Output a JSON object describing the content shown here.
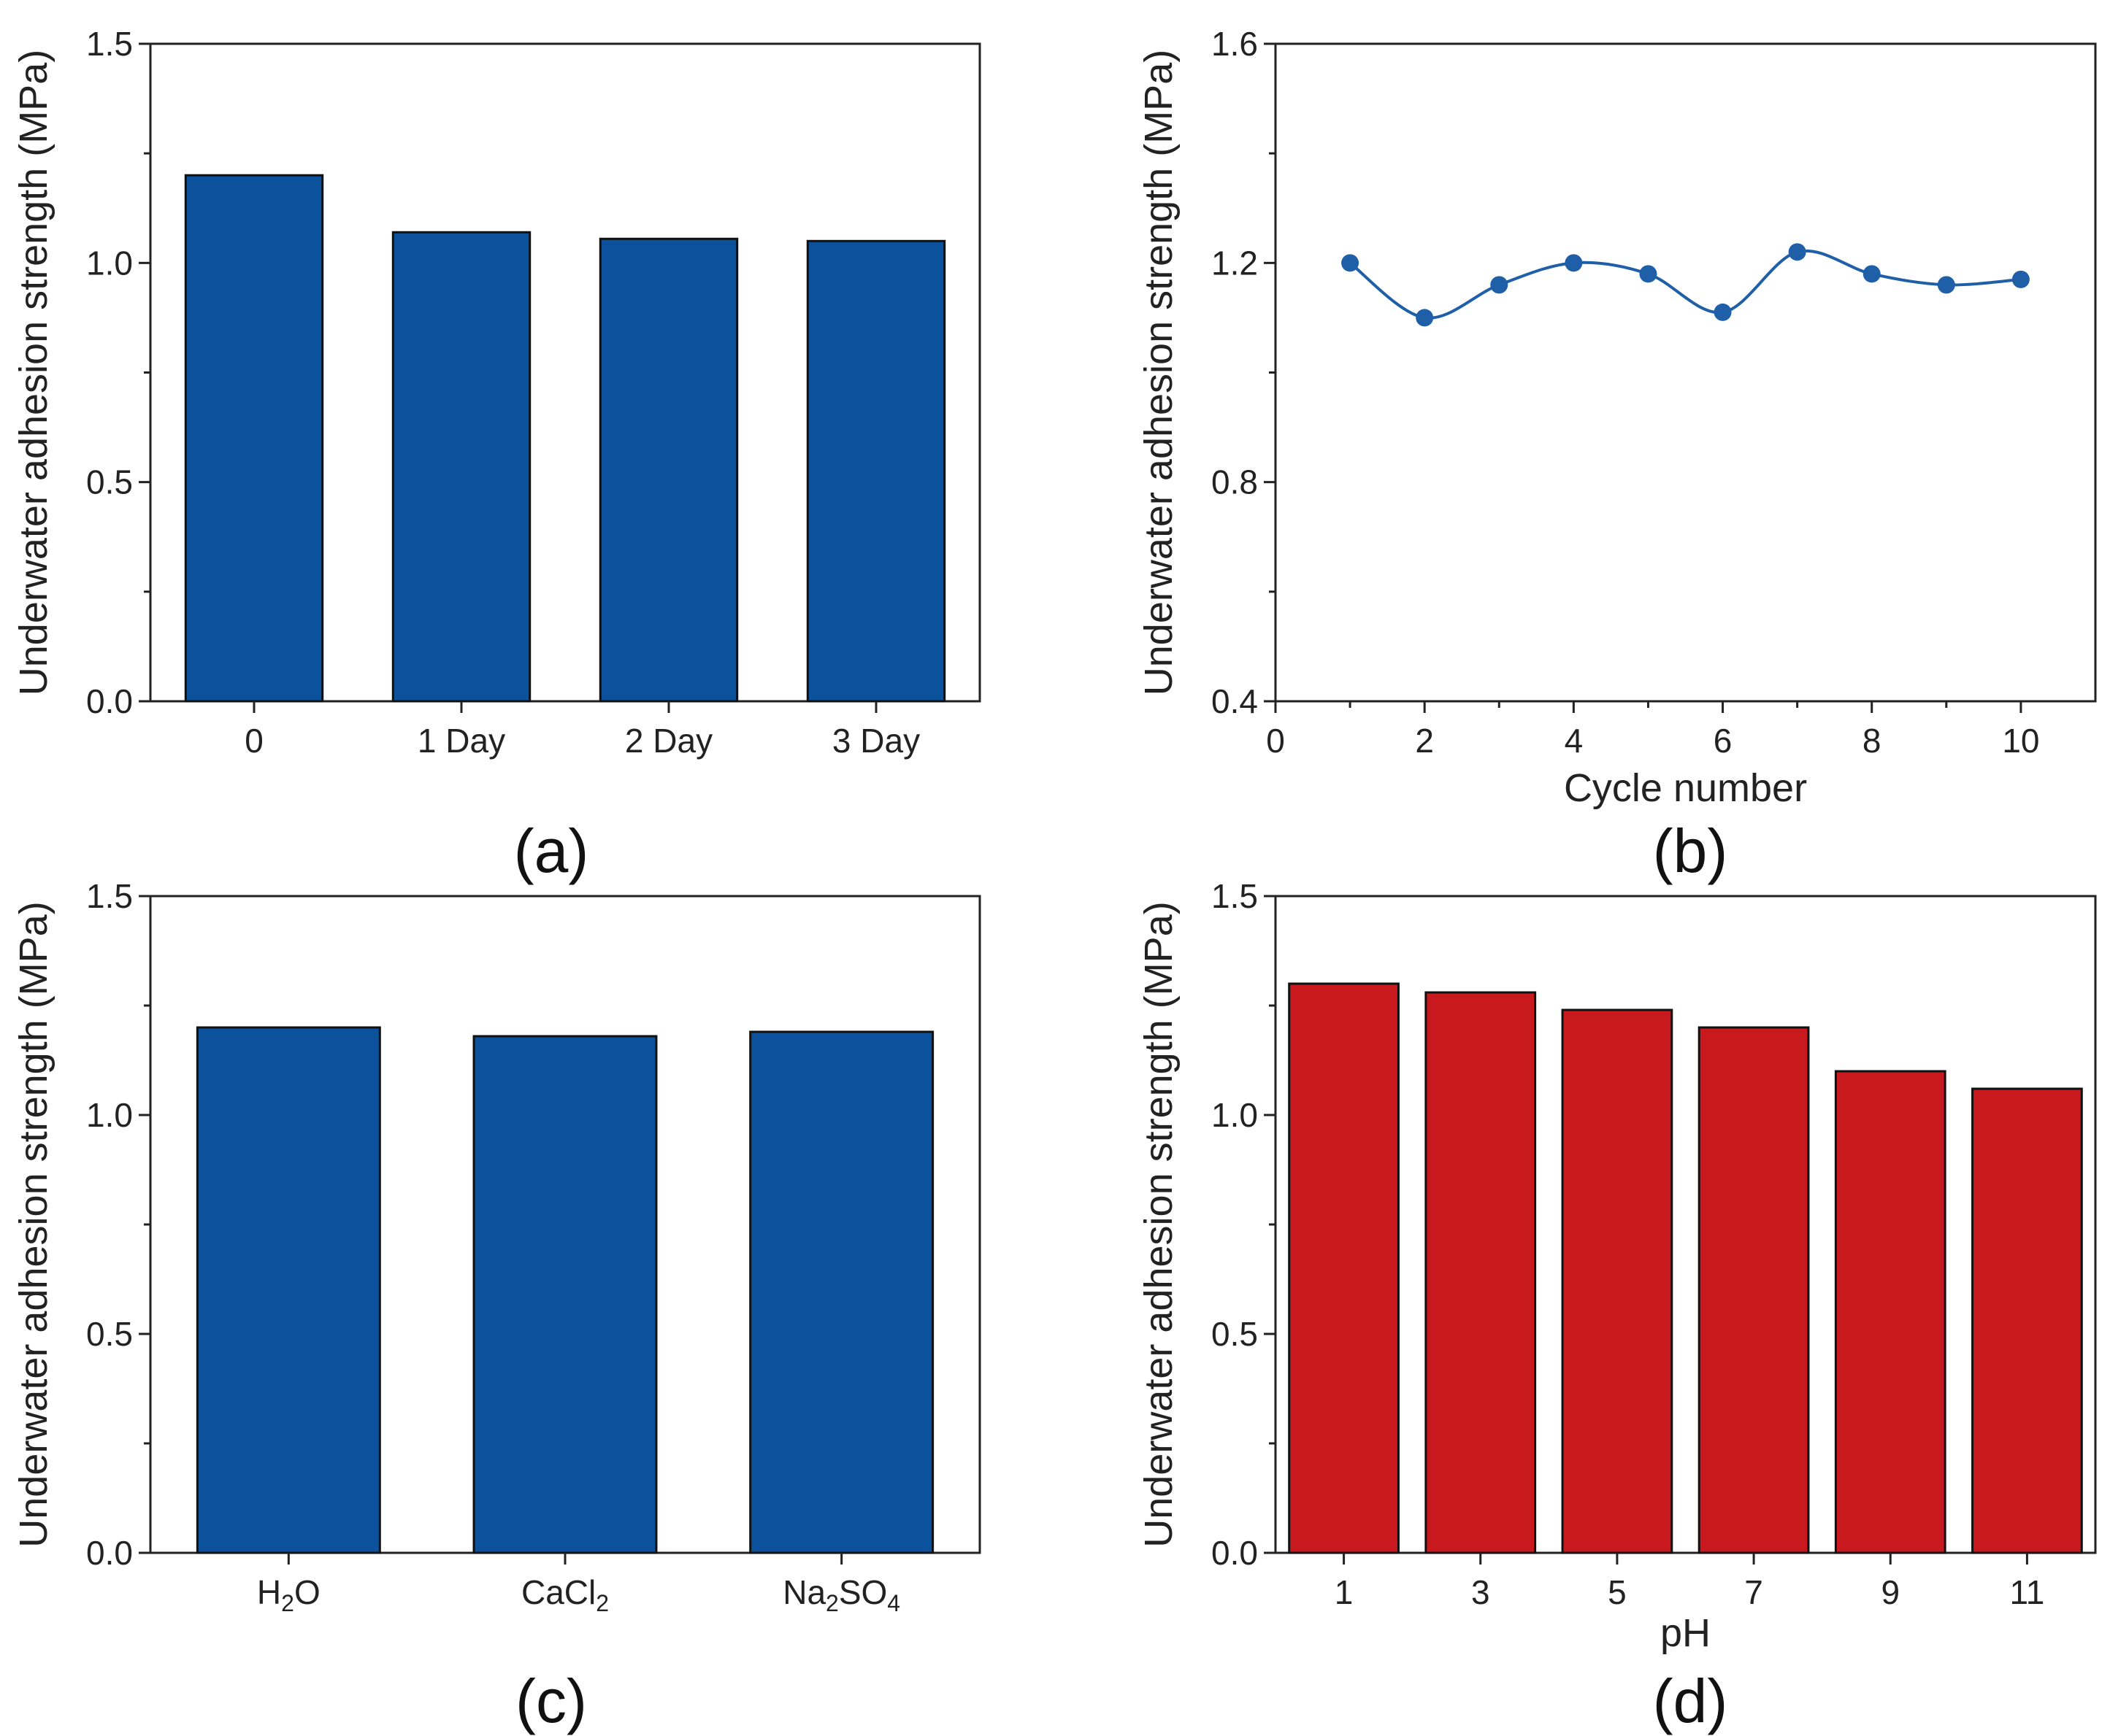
{
  "chart_data": [
    {
      "panel_label": "(a)",
      "type": "bar",
      "categories": [
        "0",
        "1 Day",
        "2 Day",
        "3 Day"
      ],
      "values": [
        1.2,
        1.07,
        1.055,
        1.05
      ],
      "ylabel": "Underwater adhesion strength (MPa)",
      "xlabel": "",
      "ylim": [
        0,
        1.5
      ],
      "yticks": [
        "0.0",
        "0.5",
        "1.0",
        "1.5"
      ],
      "color": "#0b519c"
    },
    {
      "panel_label": "(b)",
      "type": "scatter",
      "fit_line": "smooth spline",
      "x": [
        1,
        2,
        3,
        4,
        5,
        6,
        7,
        8,
        9,
        10
      ],
      "values": [
        1.2,
        1.1,
        1.16,
        1.2,
        1.18,
        1.11,
        1.22,
        1.18,
        1.16,
        1.17
      ],
      "ylabel": "Underwater adhesion strength (MPa)",
      "xlabel": "Cycle number",
      "xlim": [
        0,
        11
      ],
      "ylim": [
        0.4,
        1.6
      ],
      "xticks": [
        "0",
        "2",
        "4",
        "6",
        "8",
        "10"
      ],
      "yticks": [
        "0.4",
        "0.8",
        "1.2",
        "1.6"
      ],
      "color": "#1f5fa8"
    },
    {
      "panel_label": "(c)",
      "type": "bar",
      "categories": [
        {
          "base": "H",
          "sub": "2",
          "tail": "O"
        },
        {
          "base": "CaCl",
          "sub": "2",
          "tail": ""
        },
        {
          "base": "Na",
          "sub": "2",
          "tail": "SO",
          "sub2": "4"
        }
      ],
      "values": [
        1.2,
        1.18,
        1.19
      ],
      "ylabel": "Underwater adhesion strength (MPa)",
      "xlabel": "",
      "ylim": [
        0,
        1.5
      ],
      "yticks": [
        "0.0",
        "0.5",
        "1.0",
        "1.5"
      ],
      "color": "#0b519c"
    },
    {
      "panel_label": "(d)",
      "type": "bar",
      "categories": [
        "1",
        "3",
        "5",
        "7",
        "9",
        "11"
      ],
      "values": [
        1.3,
        1.28,
        1.24,
        1.2,
        1.1,
        1.06
      ],
      "ylabel": "Underwater adhesion strength (MPa)",
      "xlabel": "pH",
      "ylim": [
        0,
        1.5
      ],
      "yticks": [
        "0.0",
        "0.5",
        "1.0",
        "1.5"
      ],
      "color": "#c8191e"
    }
  ]
}
